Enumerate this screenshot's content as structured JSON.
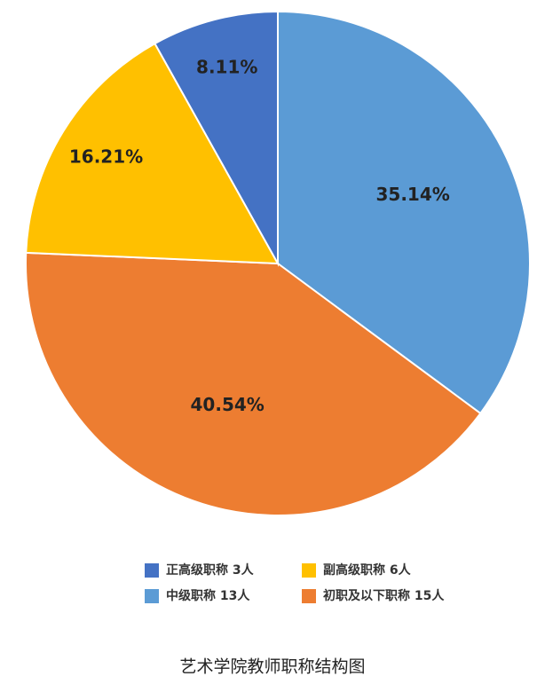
{
  "chart_data": {
    "type": "pie",
    "title": "艺术学院教师职称结构图",
    "series": [
      {
        "name": "正高级职称  3人",
        "color": "#4472c4",
        "values": [
          8.11
        ],
        "value_labels": [
          "8.11%"
        ]
      },
      {
        "name": "副高级职称  6人",
        "color": "#ffc000",
        "values": [
          16.21
        ],
        "value_labels": [
          "16.21%"
        ]
      },
      {
        "name": "中级职称  13人",
        "color": "#5b9bd5",
        "values": [
          35.14
        ],
        "value_labels": [
          "35.14%"
        ]
      },
      {
        "name": "初职及以下职称  15人",
        "color": "#ed7d31",
        "values": [
          40.54
        ],
        "value_labels": [
          "40.54%"
        ]
      }
    ]
  }
}
